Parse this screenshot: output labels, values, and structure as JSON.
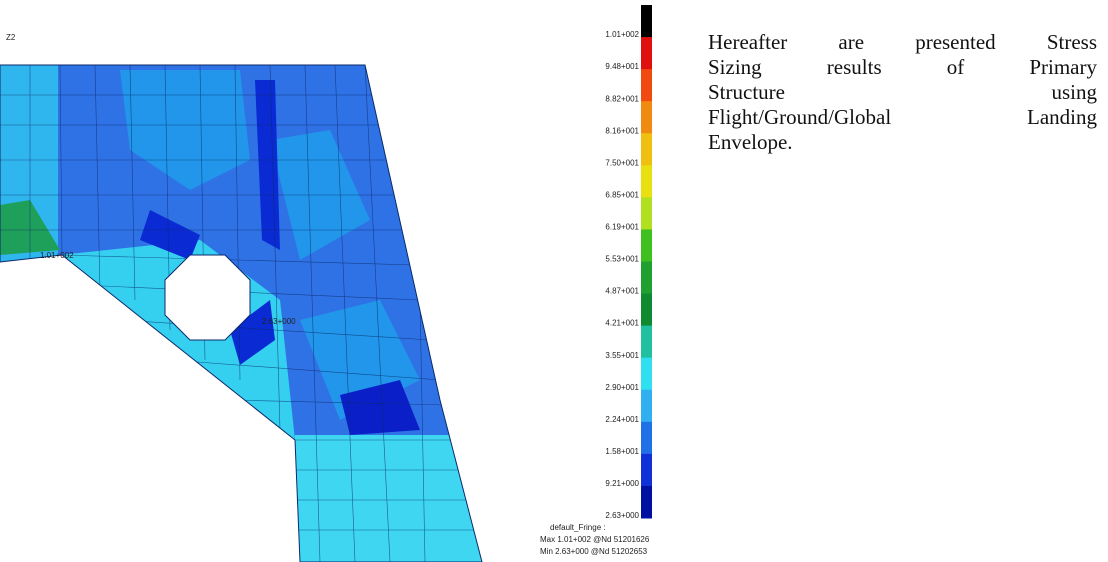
{
  "plot": {
    "view_label": "Z2",
    "max_marker": "1.01+002",
    "min_marker": "2.63+000"
  },
  "legend": {
    "labels": [
      "1.01+002",
      "9.48+001",
      "8.82+001",
      "8.16+001",
      "7.50+001",
      "6.85+001",
      "6.19+001",
      "5.53+001",
      "4.87+001",
      "4.21+001",
      "3.55+001",
      "2.90+001",
      "2.24+001",
      "1.58+001",
      "9.21+000",
      "2.63+000"
    ],
    "footer": [
      "default_Fringe :",
      "Max 1.01+002 @Nd 51201626",
      "Min 2.63+000 @Nd 51202653"
    ]
  },
  "paragraph": {
    "lines": [
      "Hereafter are presented Stress",
      "Sizing results of Primary",
      "Structure using",
      "Flight/Ground/Global Landing",
      "Envelope."
    ]
  }
}
